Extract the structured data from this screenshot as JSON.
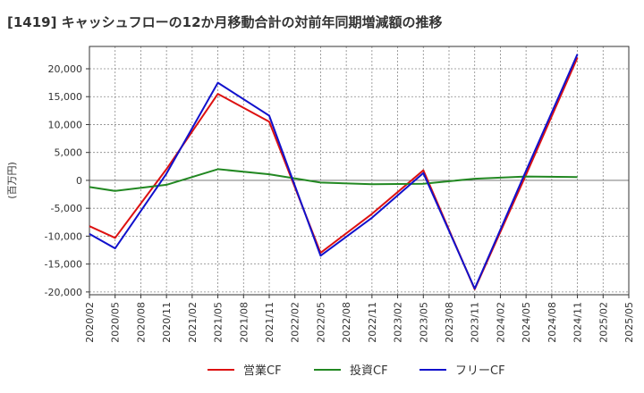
{
  "chart_data": {
    "type": "line",
    "title": "[1419]  キャッシュフローの12か月移動合計の対前年同期増減額の推移",
    "ylabel": "(百万円)",
    "xlabel": "",
    "ylim": [
      -20500,
      24000
    ],
    "yticks": [
      -20000,
      -15000,
      -10000,
      -5000,
      0,
      5000,
      10000,
      15000,
      20000
    ],
    "ytick_labels": [
      "-20,000",
      "-15,000",
      "-10,000",
      "-5,000",
      "0",
      "5,000",
      "10,000",
      "15,000",
      "20,000"
    ],
    "x_categories": [
      "2020/02",
      "2020/05",
      "2020/08",
      "2020/11",
      "2021/02",
      "2021/05",
      "2021/08",
      "2021/11",
      "2022/02",
      "2022/05",
      "2022/08",
      "2022/11",
      "2023/02",
      "2023/05",
      "2023/08",
      "2023/11",
      "2024/02",
      "2024/05",
      "2024/08",
      "2024/11",
      "2025/02",
      "2025/05"
    ],
    "legend_position": "bottom-center",
    "grid": true,
    "series": [
      {
        "name": "営業CF",
        "color": "#dd1111",
        "points": [
          [
            0,
            -8200
          ],
          [
            1,
            -10300
          ],
          [
            3,
            2000
          ],
          [
            5,
            15500
          ],
          [
            7,
            10500
          ],
          [
            9,
            -13000
          ],
          [
            11,
            -6000
          ],
          [
            13,
            1800
          ],
          [
            15,
            -19500
          ],
          [
            17,
            1000
          ],
          [
            19,
            22000
          ]
        ]
      },
      {
        "name": "投資CF",
        "color": "#228822",
        "points": [
          [
            0,
            -1200
          ],
          [
            1,
            -1900
          ],
          [
            3,
            -800
          ],
          [
            5,
            2000
          ],
          [
            7,
            1100
          ],
          [
            9,
            -400
          ],
          [
            11,
            -700
          ],
          [
            13,
            -600
          ],
          [
            15,
            300
          ],
          [
            17,
            700
          ],
          [
            19,
            600
          ]
        ]
      },
      {
        "name": "フリーCF",
        "color": "#1111cc",
        "points": [
          [
            0,
            -9600
          ],
          [
            1,
            -12200
          ],
          [
            3,
            1200
          ],
          [
            5,
            17500
          ],
          [
            7,
            11600
          ],
          [
            9,
            -13500
          ],
          [
            11,
            -6700
          ],
          [
            13,
            1300
          ],
          [
            15,
            -19400
          ],
          [
            17,
            1700
          ],
          [
            19,
            22600
          ]
        ]
      }
    ]
  }
}
